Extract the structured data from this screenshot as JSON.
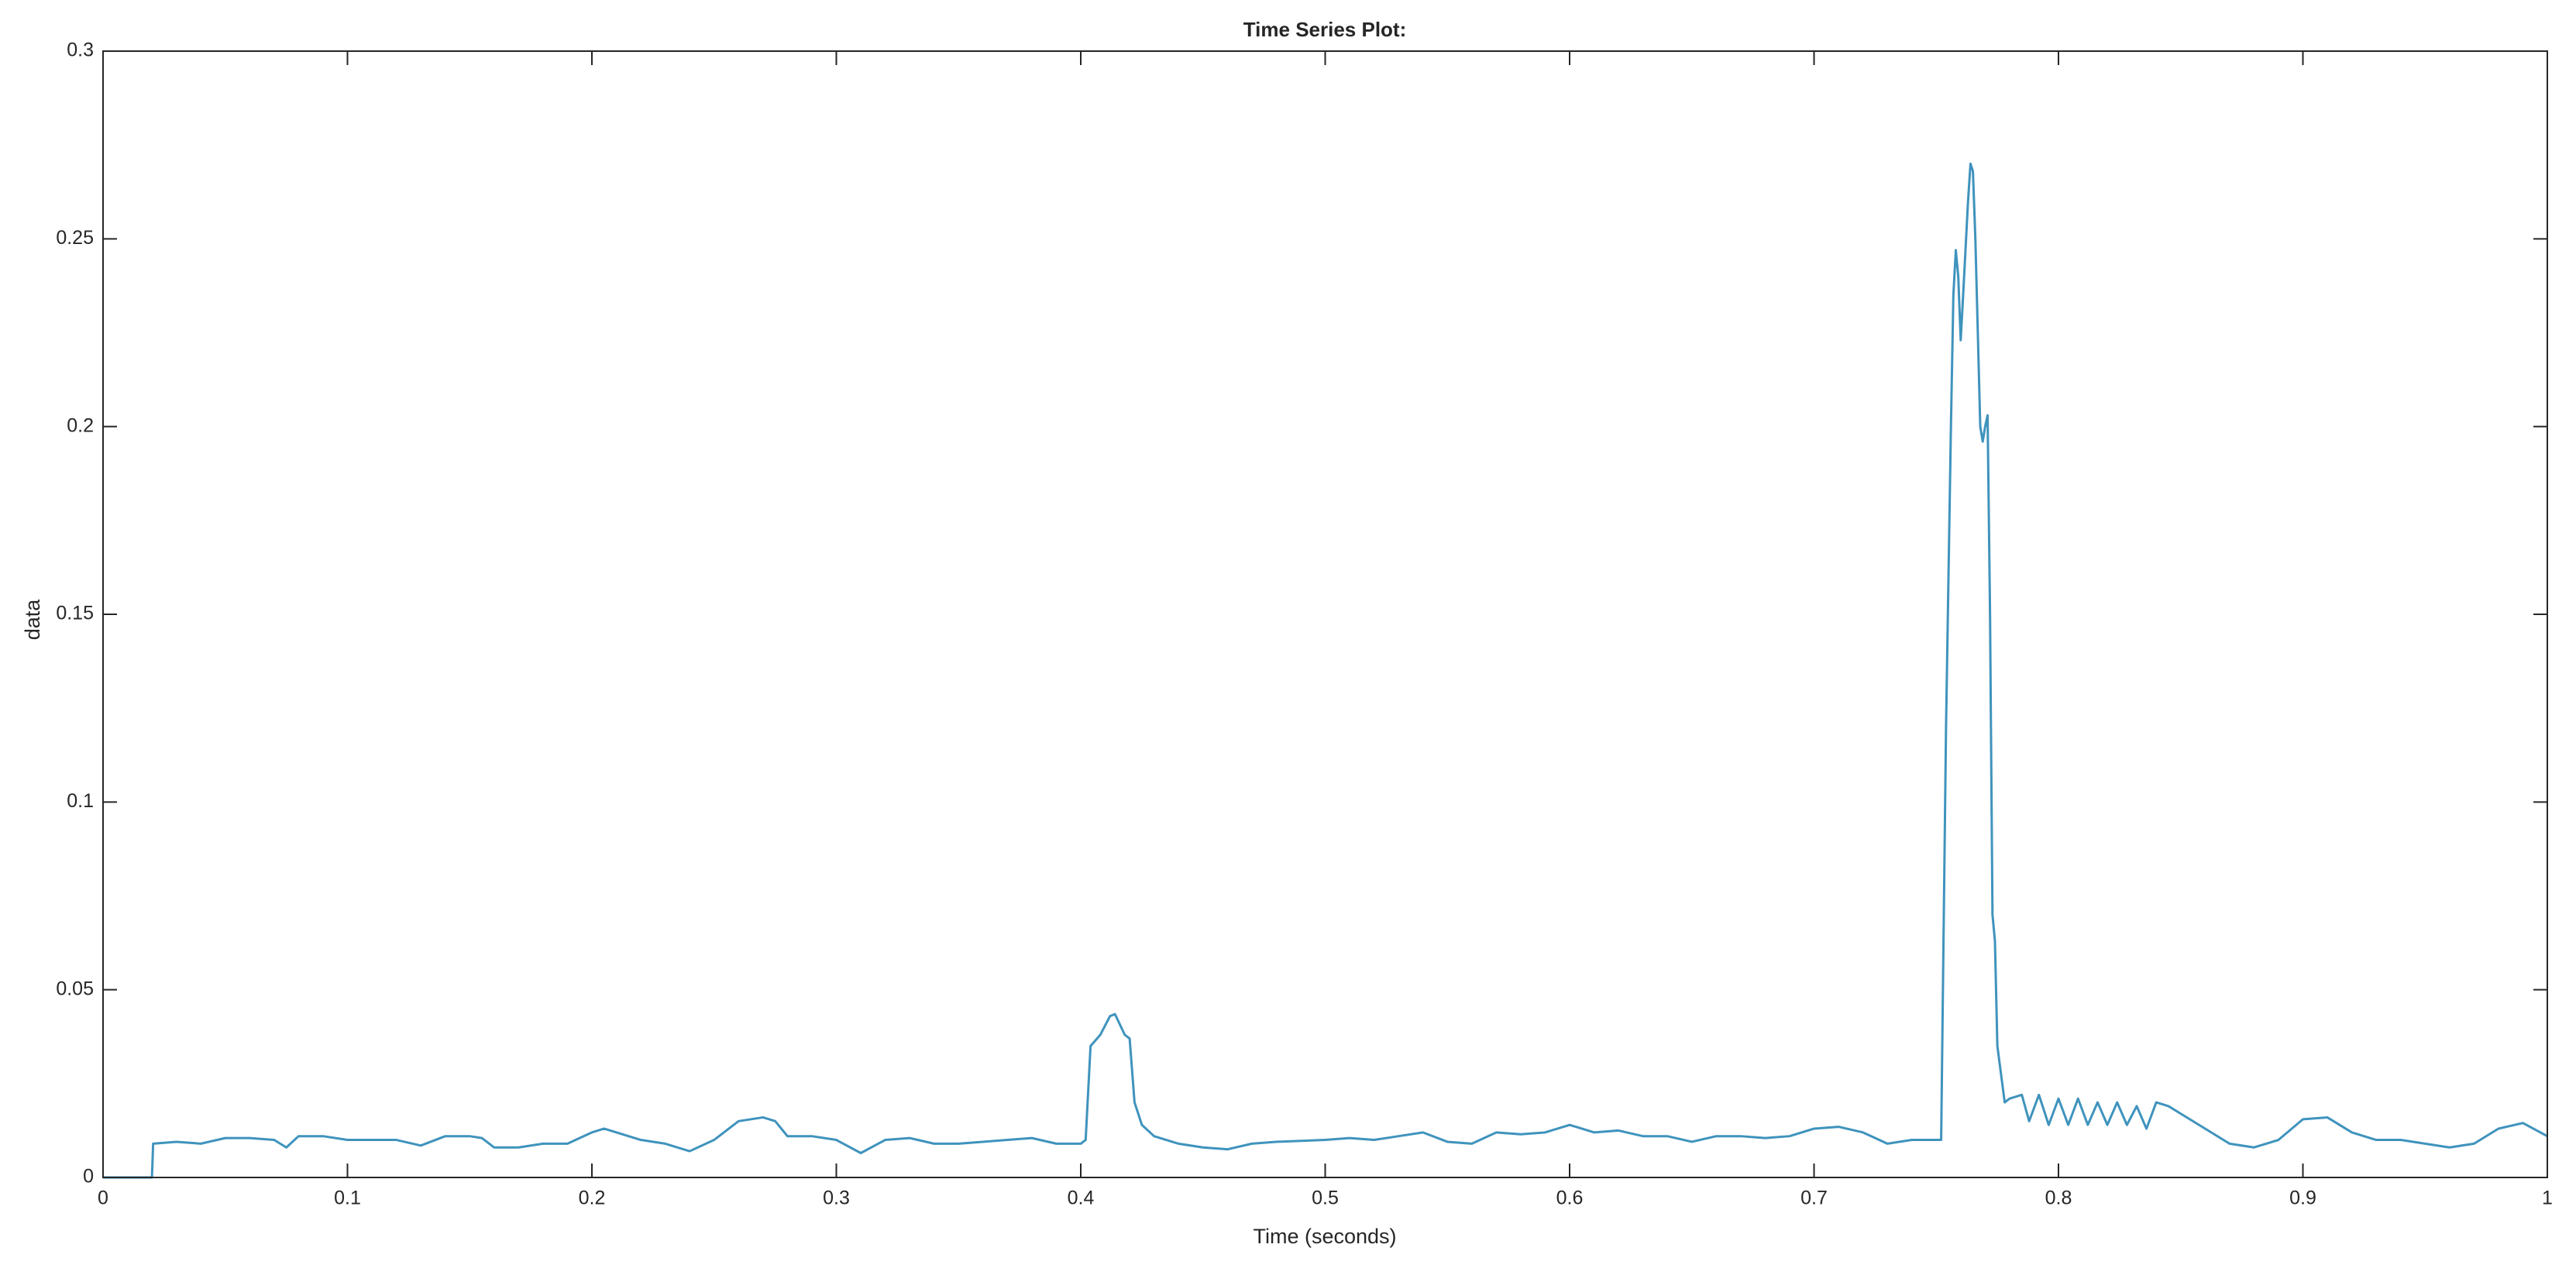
{
  "chart_data": {
    "type": "line",
    "title": "Time Series Plot:",
    "x_label": "Time (seconds)",
    "y_label": "data",
    "color": "#3f93bd",
    "grid": false,
    "xlim": [
      0,
      1
    ],
    "ylim": [
      0,
      0.3
    ],
    "xticks": [
      0,
      0.1,
      0.2,
      0.3,
      0.4,
      0.5,
      0.6,
      0.7,
      0.8,
      0.9,
      1
    ],
    "yticks": [
      0,
      0.05,
      0.1,
      0.15,
      0.2,
      0.25,
      0.3
    ],
    "x": [
      0,
      0.02,
      0.0205,
      0.03,
      0.04,
      0.05,
      0.06,
      0.07,
      0.075,
      0.08,
      0.09,
      0.1,
      0.12,
      0.13,
      0.14,
      0.15,
      0.155,
      0.16,
      0.17,
      0.18,
      0.19,
      0.2,
      0.205,
      0.21,
      0.22,
      0.23,
      0.24,
      0.25,
      0.26,
      0.27,
      0.275,
      0.28,
      0.29,
      0.3,
      0.31,
      0.32,
      0.33,
      0.34,
      0.35,
      0.36,
      0.37,
      0.38,
      0.39,
      0.4,
      0.402,
      0.404,
      0.408,
      0.412,
      0.414,
      0.418,
      0.42,
      0.422,
      0.425,
      0.43,
      0.44,
      0.45,
      0.46,
      0.47,
      0.48,
      0.5,
      0.51,
      0.52,
      0.53,
      0.54,
      0.55,
      0.56,
      0.57,
      0.58,
      0.59,
      0.6,
      0.61,
      0.62,
      0.63,
      0.64,
      0.65,
      0.66,
      0.67,
      0.68,
      0.69,
      0.7,
      0.71,
      0.72,
      0.73,
      0.74,
      0.75,
      0.752,
      0.754,
      0.756,
      0.757,
      0.758,
      0.759,
      0.76,
      0.761,
      0.763,
      0.764,
      0.765,
      0.766,
      0.768,
      0.769,
      0.77,
      0.771,
      0.772,
      0.773,
      0.774,
      0.775,
      0.776,
      0.778,
      0.78,
      0.785,
      0.788,
      0.792,
      0.796,
      0.8,
      0.804,
      0.808,
      0.812,
      0.816,
      0.82,
      0.824,
      0.828,
      0.832,
      0.836,
      0.84,
      0.845,
      0.85,
      0.86,
      0.87,
      0.88,
      0.89,
      0.9,
      0.91,
      0.92,
      0.93,
      0.94,
      0.95,
      0.96,
      0.97,
      0.98,
      0.99,
      1
    ],
    "values": [
      0,
      0,
      0.009,
      0.0095,
      0.009,
      0.0105,
      0.0105,
      0.01,
      0.008,
      0.011,
      0.011,
      0.01,
      0.01,
      0.0085,
      0.011,
      0.011,
      0.0105,
      0.008,
      0.008,
      0.009,
      0.009,
      0.012,
      0.013,
      0.012,
      0.01,
      0.009,
      0.007,
      0.01,
      0.015,
      0.016,
      0.015,
      0.011,
      0.011,
      0.01,
      0.0065,
      0.01,
      0.0105,
      0.009,
      0.009,
      0.0095,
      0.01,
      0.0105,
      0.009,
      0.009,
      0.01,
      0.035,
      0.038,
      0.043,
      0.0435,
      0.038,
      0.037,
      0.02,
      0.014,
      0.011,
      0.009,
      0.008,
      0.0075,
      0.009,
      0.0095,
      0.01,
      0.0105,
      0.01,
      0.011,
      0.012,
      0.0095,
      0.009,
      0.012,
      0.0115,
      0.012,
      0.014,
      0.012,
      0.0125,
      0.011,
      0.011,
      0.0095,
      0.011,
      0.011,
      0.0105,
      0.011,
      0.013,
      0.0135,
      0.012,
      0.009,
      0.01,
      0.01,
      0.01,
      0.12,
      0.2,
      0.235,
      0.247,
      0.24,
      0.223,
      0.235,
      0.26,
      0.27,
      0.268,
      0.25,
      0.2,
      0.196,
      0.2,
      0.203,
      0.15,
      0.07,
      0.063,
      0.035,
      0.03,
      0.02,
      0.021,
      0.022,
      0.015,
      0.022,
      0.014,
      0.021,
      0.014,
      0.021,
      0.014,
      0.02,
      0.014,
      0.02,
      0.014,
      0.019,
      0.013,
      0.02,
      0.019,
      0.017,
      0.013,
      0.009,
      0.008,
      0.01,
      0.0155,
      0.016,
      0.012,
      0.01,
      0.01,
      0.009,
      0.008,
      0.009,
      0.013,
      0.0145,
      0.011
    ]
  }
}
